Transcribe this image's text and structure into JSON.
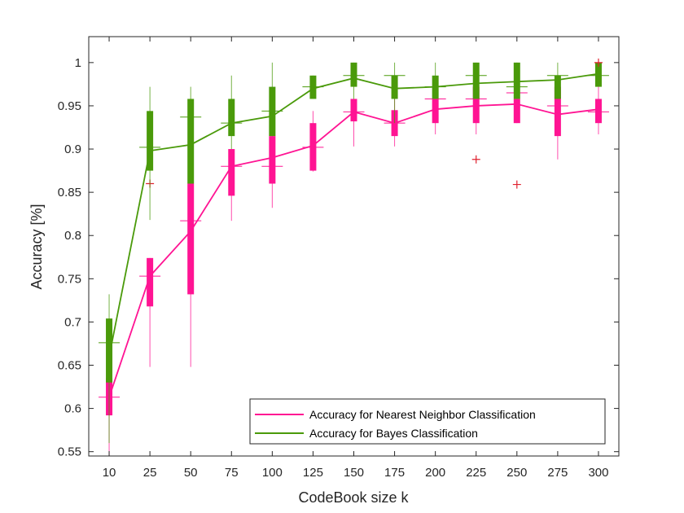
{
  "chart_data": {
    "type": "boxplot-line",
    "xlabel": "CodeBook size k",
    "ylabel": "Accuracy [%]",
    "ylim": [
      0.545,
      1.03
    ],
    "yticks": [
      "0.55",
      "0.6",
      "0.65",
      "0.7",
      "0.75",
      "0.8",
      "0.85",
      "0.9",
      "0.95",
      "1"
    ],
    "categories": [
      "10",
      "25",
      "50",
      "75",
      "100",
      "125",
      "150",
      "175",
      "200",
      "225",
      "250",
      "275",
      "300"
    ],
    "grid": false,
    "legend_position": "bottom-right",
    "series": [
      {
        "name": "Accuracy for Nearest Neighbor Classification",
        "color": "#ff1493",
        "outlier_color": "#e0202e",
        "mean": [
          0.613,
          0.753,
          0.805,
          0.88,
          0.89,
          0.904,
          0.943,
          0.93,
          0.946,
          0.95,
          0.952,
          0.94,
          0.946
        ],
        "q1": [
          0.592,
          0.718,
          0.732,
          0.846,
          0.86,
          0.875,
          0.932,
          0.915,
          0.93,
          0.93,
          0.93,
          0.915,
          0.93
        ],
        "median": [
          0.613,
          0.753,
          0.817,
          0.88,
          0.88,
          0.902,
          0.943,
          0.93,
          0.958,
          0.958,
          0.965,
          0.95,
          0.943
        ],
        "q3": [
          0.635,
          0.774,
          0.86,
          0.9,
          0.915,
          0.93,
          0.958,
          0.945,
          0.958,
          0.972,
          0.958,
          0.972,
          0.958
        ],
        "whisker_low": [
          0.545,
          0.648,
          0.648,
          0.817,
          0.832,
          0.874,
          0.903,
          0.903,
          0.917,
          0.917,
          0.93,
          0.888,
          0.917
        ],
        "whisker_high": [
          0.665,
          0.774,
          0.875,
          0.9,
          0.93,
          0.944,
          0.958,
          0.958,
          0.958,
          0.985,
          0.972,
          0.985,
          0.972
        ],
        "outliers": [
          [],
          [
            0.86
          ],
          [],
          [],
          [],
          [],
          [],
          [],
          [],
          [
            0.888
          ],
          [
            0.859
          ],
          [],
          []
        ]
      },
      {
        "name": "Accuracy for Bayes Classification",
        "color": "#4a9a0a",
        "outlier_color": "#e0202e",
        "mean": [
          0.66,
          0.898,
          0.905,
          0.93,
          0.938,
          0.97,
          0.982,
          0.97,
          0.972,
          0.976,
          0.978,
          0.98,
          0.987
        ],
        "q1": [
          0.63,
          0.875,
          0.86,
          0.915,
          0.915,
          0.958,
          0.972,
          0.958,
          0.958,
          0.958,
          0.958,
          0.958,
          0.972
        ],
        "median": [
          0.676,
          0.902,
          0.937,
          0.93,
          0.944,
          0.972,
          0.985,
          0.985,
          0.972,
          0.985,
          0.972,
          0.985,
          0.985
        ],
        "q3": [
          0.704,
          0.944,
          0.958,
          0.958,
          0.972,
          0.985,
          1.0,
          0.985,
          0.985,
          1.0,
          1.0,
          0.985,
          1.0
        ],
        "whisker_low": [
          0.56,
          0.818,
          0.86,
          0.9,
          0.915,
          0.958,
          0.958,
          0.93,
          0.958,
          0.958,
          0.958,
          0.958,
          0.972
        ],
        "whisker_high": [
          0.732,
          0.972,
          0.972,
          0.985,
          1.0,
          0.985,
          1.0,
          1.0,
          1.0,
          1.0,
          1.0,
          1.0,
          1.0
        ],
        "outliers": [
          [],
          [],
          [],
          [],
          [],
          [],
          [],
          [],
          [],
          [],
          [],
          [],
          [
            1.0
          ]
        ]
      }
    ]
  }
}
